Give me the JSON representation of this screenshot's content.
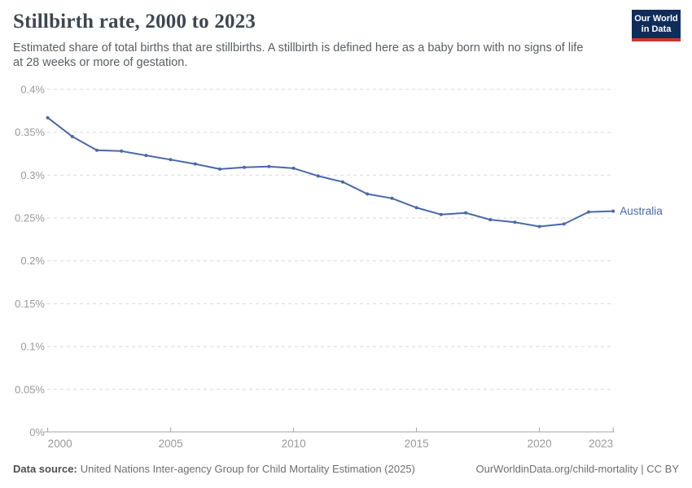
{
  "header": {
    "title": "Stillbirth rate, 2000 to 2023",
    "subtitle_line1": "Estimated share of total births that are stillbirths. A stillbirth is defined here as a baby born with no signs of life",
    "subtitle_line2": "at 28 weeks or more of gestation.",
    "logo": {
      "line1": "Our World",
      "line2": "in Data"
    }
  },
  "chart_data": {
    "type": "line",
    "title": "Stillbirth rate, 2000 to 2023",
    "xlabel": "",
    "ylabel": "",
    "unit": "%",
    "grid": true,
    "legend_position": "end-of-line",
    "xlim": [
      2000,
      2023
    ],
    "ylim": [
      0,
      0.4
    ],
    "x": [
      2000,
      2001,
      2002,
      2003,
      2004,
      2005,
      2006,
      2007,
      2008,
      2009,
      2010,
      2011,
      2012,
      2013,
      2014,
      2015,
      2016,
      2017,
      2018,
      2019,
      2020,
      2021,
      2022,
      2023
    ],
    "series": [
      {
        "name": "Australia",
        "color": "#4a68a8",
        "values": [
          0.367,
          0.345,
          0.329,
          0.328,
          0.323,
          0.318,
          0.313,
          0.307,
          0.309,
          0.31,
          0.308,
          0.299,
          0.292,
          0.278,
          0.273,
          0.262,
          0.254,
          0.256,
          0.248,
          0.245,
          0.24,
          0.243,
          0.257,
          0.258
        ]
      }
    ],
    "y_ticks": [
      {
        "value": 0.0,
        "label": "0%"
      },
      {
        "value": 0.05,
        "label": "0.05%"
      },
      {
        "value": 0.1,
        "label": "0.1%"
      },
      {
        "value": 0.15,
        "label": "0.15%"
      },
      {
        "value": 0.2,
        "label": "0.2%"
      },
      {
        "value": 0.25,
        "label": "0.25%"
      },
      {
        "value": 0.3,
        "label": "0.3%"
      },
      {
        "value": 0.35,
        "label": "0.35%"
      },
      {
        "value": 0.4,
        "label": "0.4%"
      }
    ],
    "x_ticks": [
      {
        "value": 2000,
        "label": "2000",
        "anchor": "start"
      },
      {
        "value": 2005,
        "label": "2005",
        "anchor": "middle"
      },
      {
        "value": 2010,
        "label": "2010",
        "anchor": "middle"
      },
      {
        "value": 2015,
        "label": "2015",
        "anchor": "middle"
      },
      {
        "value": 2020,
        "label": "2020",
        "anchor": "middle"
      },
      {
        "value": 2023,
        "label": "2023",
        "anchor": "end"
      }
    ]
  },
  "footer": {
    "source_label": "Data source:",
    "source_text": "United Nations Inter-agency Group for Child Mortality Estimation (2025)",
    "credit": "OurWorldinData.org/child-mortality | CC BY"
  },
  "colors": {
    "line": "#4a68a8",
    "logo_bg": "#102d5a",
    "logo_accent": "#c9372e",
    "gridline": "#dadada",
    "axis": "#a3a3a3",
    "tick_label": "#999999"
  }
}
